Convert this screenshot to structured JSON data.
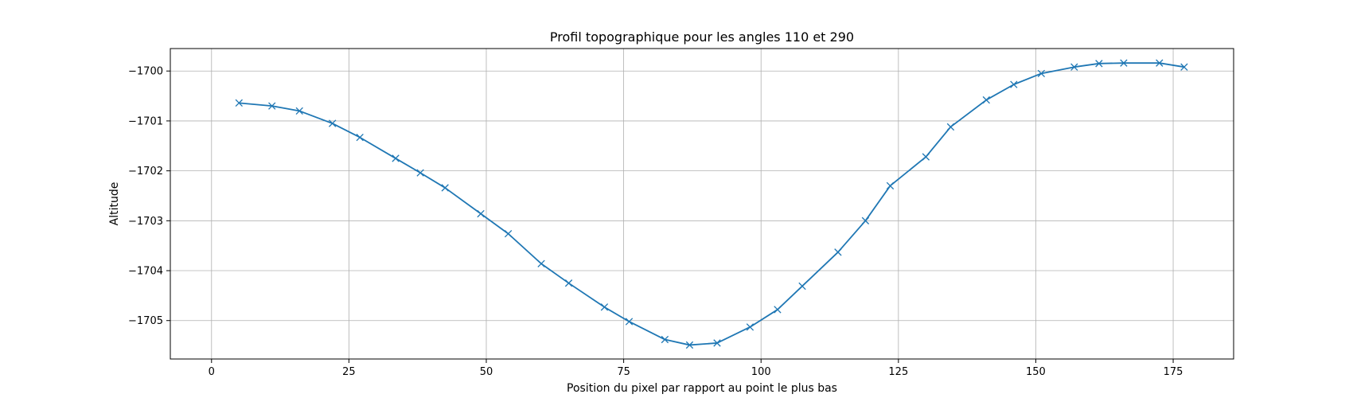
{
  "chart_data": {
    "type": "line",
    "title": "Profil topographique pour les angles 110 et 290",
    "xlabel": "Position du pixel par rapport au point le plus bas",
    "ylabel": "Altitude",
    "xlim": [
      -7.5,
      186
    ],
    "ylim": [
      -1705.77,
      -1699.55
    ],
    "xticks": [
      0,
      25,
      50,
      75,
      100,
      125,
      150,
      175
    ],
    "yticks": [
      -1705,
      -1704,
      -1703,
      -1702,
      -1701,
      -1700
    ],
    "grid": true,
    "marker": "x",
    "color": "#1f77b4",
    "series": [
      {
        "x": [
          5,
          11,
          16,
          22,
          27,
          33.5,
          38,
          42.5,
          49,
          54,
          60,
          65,
          71.5,
          76,
          82.5,
          87,
          92,
          98,
          103,
          107.5,
          114,
          119,
          123.5,
          130,
          134.5,
          141,
          146,
          151,
          157,
          161.5,
          166,
          172.5,
          177
        ],
        "y": [
          -1700.64,
          -1700.7,
          -1700.8,
          -1701.05,
          -1701.33,
          -1701.75,
          -1702.04,
          -1702.34,
          -1702.86,
          -1703.26,
          -1703.86,
          -1704.25,
          -1704.73,
          -1705.02,
          -1705.38,
          -1705.49,
          -1705.45,
          -1705.13,
          -1704.78,
          -1704.31,
          -1703.63,
          -1703.0,
          -1702.3,
          -1701.72,
          -1701.12,
          -1700.58,
          -1700.27,
          -1700.05,
          -1699.92,
          -1699.85,
          -1699.84,
          -1699.84,
          -1699.92
        ]
      }
    ]
  }
}
